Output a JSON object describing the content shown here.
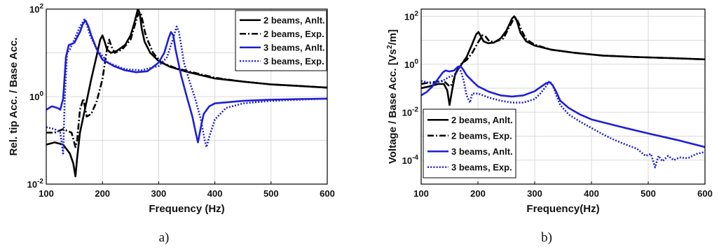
{
  "chart_data": [
    {
      "type": "line",
      "panel_label": "a)",
      "xlabel": "Frequency (Hz)",
      "ylabel": "Rel. tip  Acc. / Base Acc.",
      "xlim": [
        100,
        600
      ],
      "ylim_log": [
        -2,
        2
      ],
      "yscale": "log",
      "grid": true,
      "legend_position": "top-right",
      "xticks": [
        "100",
        "200",
        "300",
        "400",
        "500",
        "600"
      ],
      "yticks": [
        {
          "base": "10",
          "exp": "-2"
        },
        {
          "base": "10",
          "exp": "0"
        },
        {
          "base": "10",
          "exp": "2"
        }
      ],
      "series": [
        {
          "name": "2 beams, Anlt.",
          "color": "#000000",
          "style": "solid",
          "x": [
            100,
            115,
            130,
            142,
            148,
            152,
            155,
            160,
            170,
            180,
            190,
            196,
            200,
            204,
            208,
            215,
            225,
            240,
            250,
            256,
            260,
            263,
            265,
            267,
            270,
            275,
            285,
            300,
            320,
            350,
            400,
            450,
            500,
            550,
            600
          ],
          "y": [
            0.08,
            0.09,
            0.08,
            0.05,
            0.03,
            0.015,
            0.04,
            0.15,
            0.6,
            2.5,
            9,
            20,
            25,
            18,
            12,
            10,
            11,
            15,
            25,
            45,
            70,
            100,
            90,
            70,
            35,
            18,
            10,
            6.5,
            4.8,
            3.7,
            2.6,
            2.2,
            1.9,
            1.75,
            1.6
          ]
        },
        {
          "name": "2 beams, Exp.",
          "color": "#000000",
          "style": "dash-dot",
          "x": [
            100,
            115,
            130,
            145,
            152,
            155,
            160,
            166,
            172,
            180,
            190,
            200,
            208,
            212,
            216,
            222,
            235,
            250,
            258,
            264,
            268,
            272,
            276,
            280,
            290,
            305,
            330,
            360,
            400,
            450,
            500,
            550,
            600
          ],
          "y": [
            0.15,
            0.15,
            0.18,
            0.15,
            0.07,
            0.1,
            0.5,
            0.9,
            0.35,
            0.4,
            0.8,
            2.5,
            12,
            20,
            14,
            10,
            12,
            20,
            45,
            80,
            85,
            50,
            28,
            20,
            10,
            6,
            4.5,
            3.6,
            2.7,
            2.2,
            1.9,
            1.75,
            1.6
          ]
        },
        {
          "name": "3 beams, Anlt.",
          "color": "#1f1fd6",
          "style": "solid",
          "x": [
            100,
            110,
            120,
            125,
            130,
            135,
            140,
            150,
            160,
            165,
            170,
            175,
            180,
            190,
            200,
            220,
            240,
            260,
            280,
            300,
            310,
            318,
            322,
            326,
            330,
            340,
            350,
            360,
            366,
            370,
            375,
            380,
            390,
            400,
            450,
            500,
            550,
            600
          ],
          "y": [
            0.5,
            0.6,
            0.55,
            0.5,
            0.9,
            8,
            15,
            17,
            30,
            45,
            55,
            40,
            25,
            12,
            7,
            5,
            4,
            3.6,
            3.8,
            6,
            10,
            22,
            30,
            25,
            12,
            3,
            1,
            0.35,
            0.15,
            0.09,
            0.2,
            0.4,
            0.6,
            0.7,
            0.8,
            0.85,
            0.88,
            0.9
          ]
        },
        {
          "name": "3 beams, Exp.",
          "color": "#2222cc",
          "style": "dotted",
          "x": [
            100,
            115,
            125,
            130,
            133,
            137,
            142,
            150,
            160,
            168,
            172,
            178,
            190,
            210,
            240,
            270,
            300,
            315,
            325,
            332,
            336,
            340,
            345,
            355,
            365,
            375,
            382,
            385,
            390,
            400,
            420,
            450,
            500,
            550,
            600
          ],
          "y": [
            0.2,
            0.18,
            0.15,
            0.05,
            1,
            10,
            12,
            20,
            40,
            58,
            45,
            25,
            12,
            6,
            4.2,
            4,
            5,
            8,
            20,
            40,
            30,
            15,
            6,
            2.2,
            0.9,
            0.3,
            0.1,
            0.07,
            0.12,
            0.3,
            0.55,
            0.7,
            0.8,
            0.85,
            0.9
          ]
        }
      ]
    },
    {
      "type": "line",
      "panel_label": "b)",
      "xlabel": "Frequency(Hz)",
      "ylabel": "Voltage / Base Acc.  [Vs²/m]",
      "ylabel_main": "Voltage / Base Acc.  [Vs",
      "ylabel_sup": "2",
      "ylabel_tail": "/m]",
      "xlim": [
        100,
        600
      ],
      "ylim_log": [
        -5,
        2.3
      ],
      "yscale": "log",
      "grid": true,
      "legend_position": "bottom-left",
      "xticks": [
        "100",
        "200",
        "300",
        "400",
        "500",
        "600"
      ],
      "yticks": [
        {
          "base": "10",
          "exp": "-4"
        },
        {
          "base": "10",
          "exp": "-2"
        },
        {
          "base": "10",
          "exp": "0"
        },
        {
          "base": "10",
          "exp": "2"
        }
      ],
      "series": [
        {
          "name": "2 beams, Anlt.",
          "color": "#000000",
          "style": "solid",
          "x": [
            100,
            115,
            130,
            140,
            146,
            150,
            154,
            160,
            170,
            180,
            190,
            197,
            201,
            205,
            210,
            218,
            228,
            240,
            250,
            256,
            260,
            264,
            267,
            270,
            275,
            285,
            300,
            330,
            370,
            420,
            480,
            540,
            600
          ],
          "y": [
            0.1,
            0.12,
            0.15,
            0.15,
            0.08,
            0.02,
            0.07,
            0.4,
            0.9,
            2,
            7,
            18,
            22,
            15,
            9,
            7.5,
            8,
            12,
            25,
            50,
            80,
            100,
            80,
            50,
            20,
            9,
            6,
            4,
            3,
            2.3,
            2,
            1.8,
            1.6
          ]
        },
        {
          "name": "2 beams, Exp.",
          "color": "#000000",
          "style": "dash-dot",
          "x": [
            100,
            120,
            140,
            150,
            155,
            162,
            170,
            180,
            190,
            200,
            208,
            214,
            220,
            230,
            245,
            255,
            262,
            268,
            272,
            277,
            285,
            300,
            330,
            370,
            420,
            480,
            540,
            600
          ],
          "y": [
            0.15,
            0.18,
            0.2,
            0.12,
            0.15,
            0.5,
            1,
            1.5,
            3,
            8,
            16,
            14,
            9,
            8.5,
            12,
            35,
            70,
            80,
            50,
            25,
            11,
            6.5,
            4,
            3,
            2.3,
            2,
            1.8,
            1.6
          ]
        },
        {
          "name": "3 beams, Anlt.",
          "color": "#1f1fd6",
          "style": "solid",
          "x": [
            100,
            110,
            120,
            130,
            138,
            143,
            150,
            158,
            165,
            170,
            175,
            180,
            190,
            200,
            220,
            240,
            260,
            280,
            300,
            310,
            320,
            326,
            332,
            338,
            345,
            360,
            380,
            400,
            450,
            500,
            550,
            600
          ],
          "y": [
            0.05,
            0.07,
            0.12,
            0.25,
            0.45,
            0.55,
            0.5,
            0.55,
            0.8,
            0.8,
            0.55,
            0.35,
            0.2,
            0.12,
            0.07,
            0.05,
            0.045,
            0.05,
            0.075,
            0.11,
            0.16,
            0.18,
            0.13,
            0.07,
            0.03,
            0.015,
            0.008,
            0.005,
            0.0025,
            0.0013,
            0.0007,
            0.00035
          ]
        },
        {
          "name": "3 beams, Exp.",
          "color": "#2222cc",
          "style": "dotted",
          "x": [
            100,
            110,
            120,
            130,
            140,
            150,
            160,
            166,
            170,
            175,
            180,
            186,
            190,
            200,
            220,
            240,
            260,
            280,
            300,
            310,
            320,
            326,
            332,
            338,
            345,
            360,
            380,
            400,
            420,
            440,
            460,
            480,
            495,
            505,
            512,
            518,
            525,
            535,
            545,
            555,
            570,
            585,
            600
          ],
          "y": [
            0.2,
            0.18,
            0.15,
            0.18,
            0.22,
            0.3,
            0.35,
            0.7,
            0.5,
            0.2,
            0.05,
            0.025,
            0.06,
            0.06,
            0.04,
            0.03,
            0.025,
            0.025,
            0.035,
            0.06,
            0.12,
            0.2,
            0.13,
            0.05,
            0.02,
            0.008,
            0.004,
            0.0022,
            0.0012,
            0.0007,
            0.00045,
            0.0003,
            0.00015,
            0.00018,
            5e-05,
            0.00015,
            9e-05,
            0.00015,
            0.0001,
            0.00013,
            0.00012,
            0.00018,
            0.00022
          ]
        }
      ]
    }
  ]
}
